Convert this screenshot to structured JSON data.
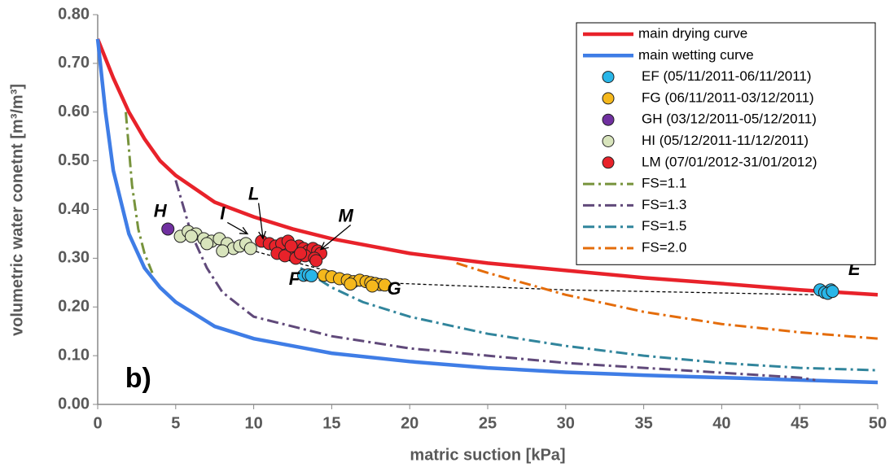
{
  "chart_data": {
    "type": "scatter",
    "xlabel": "matric suction [kPa]",
    "ylabel": "volumetric water conetnt [m³/m³]",
    "xlim": [
      0,
      50
    ],
    "ylim": [
      0,
      0.8
    ],
    "xticks": [
      0,
      5,
      10,
      15,
      20,
      25,
      30,
      35,
      40,
      45,
      50
    ],
    "yticks": [
      {
        "value": 0,
        "label": "0.00"
      },
      {
        "value": 0.1,
        "label": "0.10"
      },
      {
        "value": 0.2,
        "label": "0.20"
      },
      {
        "value": 0.3,
        "label": "0.30"
      },
      {
        "value": 0.4,
        "label": "0.40"
      },
      {
        "value": 0.5,
        "label": "0.50"
      },
      {
        "value": 0.6,
        "label": "0.60"
      },
      {
        "value": 0.7,
        "label": "0.70"
      },
      {
        "value": 0.8,
        "label": "0.80"
      }
    ],
    "legend": "upper right",
    "series": [
      {
        "name": "main drying curve",
        "kind": "line",
        "style": "solid",
        "color": "#e8222a",
        "x": [
          0,
          1,
          2,
          3,
          4,
          5,
          7.5,
          10,
          12.5,
          15,
          20,
          25,
          30,
          35,
          40,
          45,
          50
        ],
        "values": [
          0.75,
          0.67,
          0.6,
          0.545,
          0.5,
          0.47,
          0.415,
          0.385,
          0.36,
          0.34,
          0.31,
          0.29,
          0.275,
          0.26,
          0.248,
          0.235,
          0.225
        ]
      },
      {
        "name": "main wetting curve",
        "kind": "line",
        "style": "solid",
        "color": "#3f7de6",
        "x": [
          0,
          0.5,
          1,
          2,
          3,
          4,
          5,
          7.5,
          10,
          15,
          20,
          25,
          30,
          35,
          40,
          45,
          50
        ],
        "values": [
          0.75,
          0.6,
          0.48,
          0.35,
          0.28,
          0.24,
          0.21,
          0.16,
          0.135,
          0.105,
          0.088,
          0.075,
          0.066,
          0.06,
          0.055,
          0.05,
          0.045
        ]
      },
      {
        "name": "EF (05/11/2011-06/11/2011)",
        "kind": "scatter",
        "color": "#29b6e8",
        "x": [
          13.2,
          13.5,
          13.7,
          46.3,
          46.6,
          47.0,
          46.8,
          47.1
        ],
        "values": [
          0.265,
          0.266,
          0.264,
          0.235,
          0.23,
          0.235,
          0.228,
          0.232
        ]
      },
      {
        "name": "FG (06/11/2011-03/12/2011)",
        "kind": "scatter",
        "color": "#f5b81c",
        "x": [
          14.5,
          15.0,
          15.5,
          16.0,
          16.4,
          16.8,
          17.2,
          17.5,
          17.8,
          18.1,
          18.4,
          17.6,
          16.2
        ],
        "values": [
          0.265,
          0.262,
          0.258,
          0.255,
          0.252,
          0.255,
          0.252,
          0.25,
          0.248,
          0.246,
          0.245,
          0.243,
          0.247
        ]
      },
      {
        "name": "GH (03/12/2011-05/12/2011)",
        "kind": "scatter",
        "color": "#7030a0",
        "x": [
          4.5
        ],
        "values": [
          0.36
        ]
      },
      {
        "name": "HI (05/12/2011-11/12/2011)",
        "kind": "scatter",
        "color": "#d8e4bc",
        "x": [
          5.3,
          5.8,
          6.3,
          6.8,
          7.3,
          7.8,
          8.3,
          8.7,
          9.1,
          9.5,
          9.8,
          6.0,
          7.0,
          8.0
        ],
        "values": [
          0.345,
          0.355,
          0.35,
          0.34,
          0.335,
          0.34,
          0.33,
          0.32,
          0.325,
          0.33,
          0.32,
          0.345,
          0.33,
          0.315
        ]
      },
      {
        "name": "LM (07/01/2012-31/01/2012)",
        "kind": "scatter",
        "color": "#e8222a",
        "x": [
          10.5,
          11.0,
          11.4,
          11.8,
          12.2,
          12.5,
          12.9,
          13.2,
          13.5,
          13.8,
          14.1,
          14.3,
          11.5,
          12.0,
          12.7,
          13.3,
          13.9,
          12.4,
          13.0,
          14.0
        ],
        "values": [
          0.335,
          0.33,
          0.325,
          0.33,
          0.335,
          0.32,
          0.325,
          0.32,
          0.315,
          0.32,
          0.315,
          0.31,
          0.31,
          0.305,
          0.3,
          0.305,
          0.3,
          0.325,
          0.31,
          0.295
        ]
      },
      {
        "name": "FS=1.1",
        "kind": "line",
        "style": "dashdot",
        "color": "#77933c",
        "x": [
          1.8,
          2.2,
          2.6,
          3.0,
          3.5
        ],
        "values": [
          0.6,
          0.45,
          0.36,
          0.31,
          0.27
        ]
      },
      {
        "name": "FS=1.3",
        "kind": "line",
        "style": "dashdot",
        "color": "#60497a",
        "x": [
          5,
          6,
          7,
          8,
          10,
          15,
          20,
          25,
          30,
          35,
          40,
          45,
          46
        ],
        "values": [
          0.46,
          0.35,
          0.28,
          0.23,
          0.18,
          0.14,
          0.115,
          0.1,
          0.085,
          0.075,
          0.065,
          0.055,
          0.05
        ]
      },
      {
        "name": "FS=1.5",
        "kind": "line",
        "style": "dashdot",
        "color": "#31859c",
        "x": [
          13,
          14,
          15,
          17,
          20,
          25,
          30,
          35,
          40,
          45,
          50
        ],
        "values": [
          0.28,
          0.26,
          0.24,
          0.21,
          0.18,
          0.145,
          0.12,
          0.1,
          0.085,
          0.075,
          0.07
        ]
      },
      {
        "name": "FS=2.0",
        "kind": "line",
        "style": "dashdot",
        "color": "#e46c0a",
        "x": [
          23,
          25,
          30,
          35,
          40,
          45,
          50
        ],
        "values": [
          0.29,
          0.27,
          0.225,
          0.19,
          0.165,
          0.148,
          0.135
        ]
      }
    ],
    "guides": [
      {
        "x": [
          5.5,
          10,
          14,
          18,
          30,
          46
        ],
        "values": [
          0.345,
          0.315,
          0.28,
          0.25,
          0.235,
          0.225
        ]
      }
    ],
    "annotations": [
      {
        "text": "H",
        "x": 4.0,
        "y": 0.395
      },
      {
        "text": "I",
        "x": 8.0,
        "y": 0.39,
        "ax": 9.6,
        "ay": 0.35
      },
      {
        "text": "L",
        "x": 10.0,
        "y": 0.43,
        "ax": 10.6,
        "ay": 0.34
      },
      {
        "text": "M",
        "x": 15.9,
        "y": 0.385,
        "ax": 14.3,
        "ay": 0.318
      },
      {
        "text": "F",
        "x": 12.6,
        "y": 0.255
      },
      {
        "text": "G",
        "x": 19.0,
        "y": 0.235
      },
      {
        "text": "E",
        "x": 48.5,
        "y": 0.275
      },
      {
        "text": "b)",
        "x": 2.6,
        "y": 0.05
      }
    ]
  }
}
